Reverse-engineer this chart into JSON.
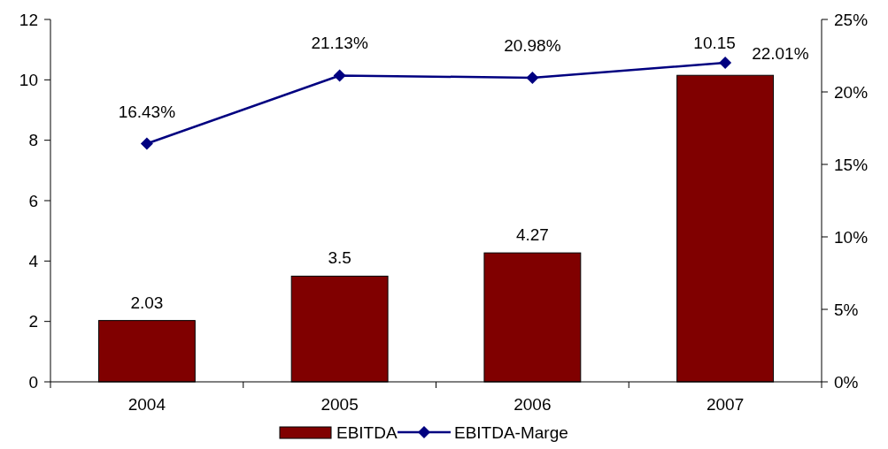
{
  "chart_data": {
    "type": "bar",
    "categories": [
      "2004",
      "2005",
      "2006",
      "2007"
    ],
    "series": [
      {
        "name": "EBITDA",
        "color": "#800000",
        "values": [
          2.03,
          3.5,
          4.27,
          10.15
        ],
        "value_labels": [
          "2.03",
          "3.5",
          "4.27",
          "10.15"
        ]
      },
      {
        "name": "EBITDA-Marge",
        "type": "line",
        "axis": "y2",
        "color": "#000080",
        "values": [
          16.43,
          21.13,
          20.98,
          22.01
        ],
        "value_labels": [
          "16.43%",
          "21.13%",
          "20.98%",
          "22.01%"
        ],
        "marker": "diamond",
        "line_style": "solid"
      }
    ],
    "ylim": [
      0,
      12
    ],
    "yticks": [
      0,
      2,
      4,
      6,
      8,
      10,
      12
    ],
    "y2lim": [
      0,
      25
    ],
    "y2ticks": [
      {
        "value": 0,
        "label": "0%"
      },
      {
        "value": 5,
        "label": "5%"
      },
      {
        "value": 10,
        "label": "10%"
      },
      {
        "value": 15,
        "label": "15%"
      },
      {
        "value": 20,
        "label": "20%"
      },
      {
        "value": 25,
        "label": "25%"
      }
    ],
    "grid": false,
    "legend": "bottom"
  }
}
